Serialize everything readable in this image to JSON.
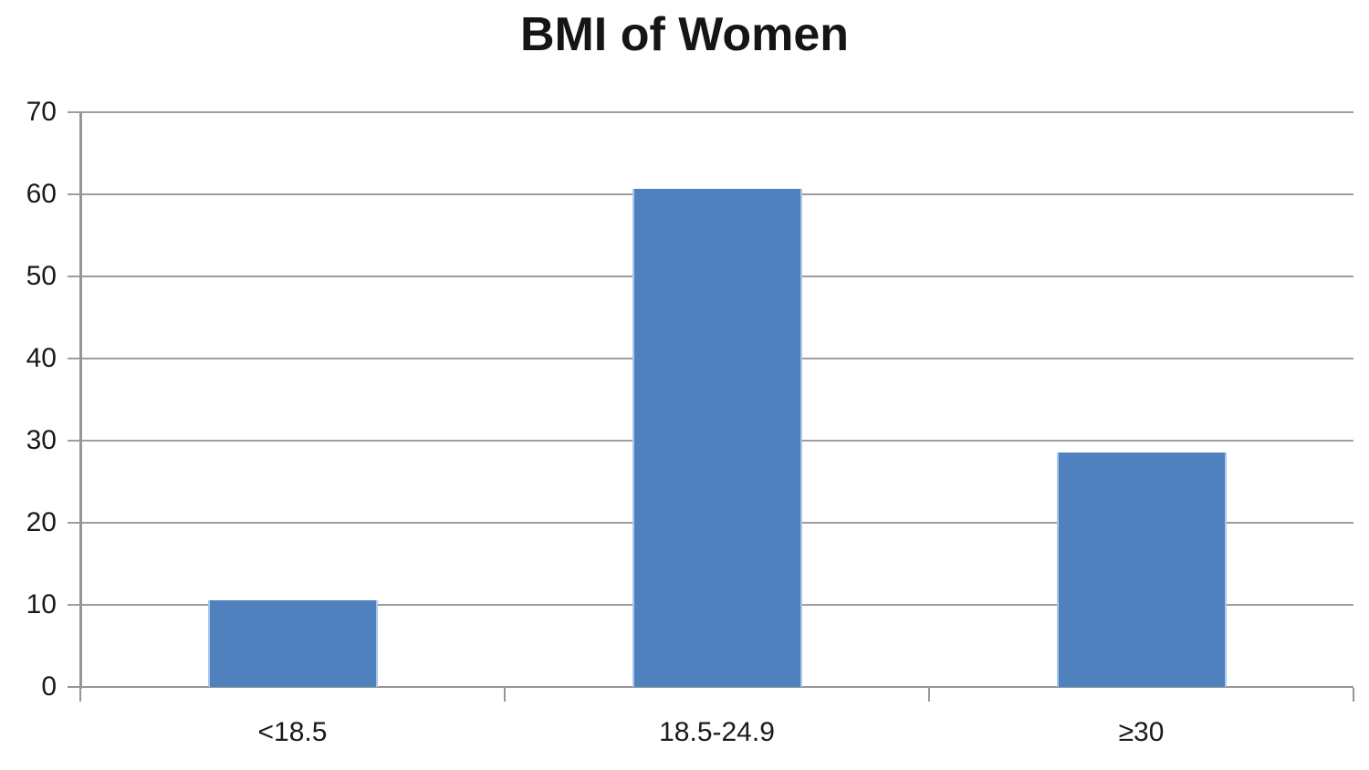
{
  "chart_data": {
    "type": "bar",
    "title": "BMI of Women",
    "categories": [
      "<18.5",
      "18.5-24.9",
      "≥30"
    ],
    "values": [
      10.6,
      60.7,
      28.5
    ],
    "xlabel": "",
    "ylabel": "",
    "ylim": [
      0,
      70
    ],
    "yticks": [
      0,
      10,
      20,
      30,
      40,
      50,
      60,
      70
    ],
    "grid": "horizontal",
    "legend": "none",
    "colors": {
      "bar_fill": "#4E81BD",
      "bar_edge": "#A9C7E8",
      "gridline": "#9E9E9E",
      "axis": "#969696",
      "text": "#1A1A1A"
    }
  }
}
